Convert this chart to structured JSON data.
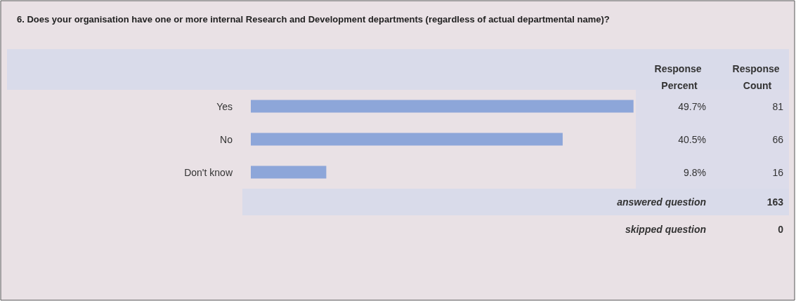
{
  "chart_data": {
    "type": "bar",
    "orientation": "horizontal",
    "title": "6. Does your organisation have one or more internal Research and Development departments (regardless of actual departmental name)?",
    "categories": [
      "Yes",
      "No",
      "Don't know"
    ],
    "values": [
      49.7,
      40.5,
      9.8
    ],
    "value_labels": [
      "49.7%",
      "40.5%",
      "9.8%"
    ],
    "color": "#8da6d9",
    "tick_labels": "y",
    "annotations": [
      "Response Percent",
      "Response Count",
      "81",
      "66",
      "16",
      "answered question",
      "163",
      "skipped question",
      "0"
    ]
  }
}
